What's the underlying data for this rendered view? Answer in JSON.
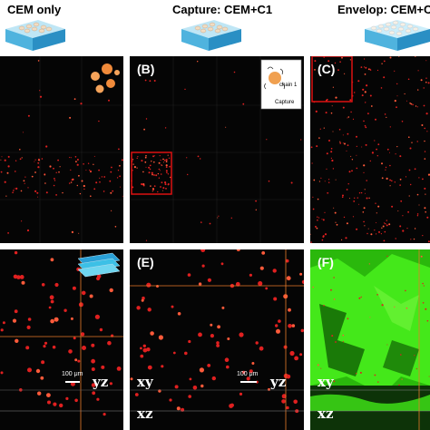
{
  "headers": {
    "col1": "CEM only",
    "col2": "Capture: CEM+C1",
    "col3": "Envelop: CEM+C"
  },
  "panels": {
    "A": "",
    "B": "(B)",
    "C": "(C)",
    "D": "",
    "E": "(E)",
    "F": "(F)"
  },
  "inset": {
    "chain_label": "chain 1",
    "capture_label": "Capture"
  },
  "scale_bars": {
    "d": "100 μm",
    "e": "100 μm"
  },
  "ortho_labels": {
    "yz": "yz",
    "xy": "xy",
    "xz": "xz"
  },
  "colors": {
    "cell_red": "#e02020",
    "gel_green": "#33dd11",
    "box_red": "#dd1111",
    "crosshair": "#e87a2a"
  }
}
